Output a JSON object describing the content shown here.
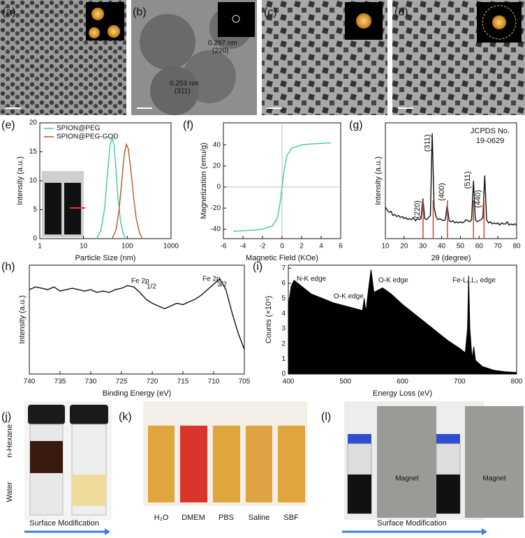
{
  "panel_labels": [
    "(a)",
    "(b)",
    "(c)",
    "(d)",
    "(e)",
    "(f)",
    "(g)",
    "(h)",
    "(i)",
    "(j)",
    "(k)",
    "(l)"
  ],
  "tem": {
    "annotations": [
      "0.297 nm",
      "(220)",
      "0.253 nm",
      "(311)"
    ]
  },
  "chart_data": [
    {
      "type": "line",
      "xlabel": "Particle Size (nm)",
      "ylabel": "Intensity (a.u.)",
      "xscale": "log",
      "xlim": [
        1,
        1000
      ],
      "xticks": [
        1,
        10,
        100,
        1000
      ],
      "ylim": [
        0,
        20
      ],
      "yticks": [
        0,
        5,
        10,
        15,
        20
      ],
      "legend": "upper left",
      "series": [
        {
          "name": "SPION@PEG",
          "color": "#3ec9a8",
          "x": [
            20,
            25,
            30,
            35,
            40,
            45,
            50,
            55,
            60,
            70,
            80,
            90
          ],
          "values": [
            0,
            1.5,
            5,
            11,
            16,
            17.5,
            16,
            12,
            8,
            3,
            1,
            0
          ]
        },
        {
          "name": "SPION@PEG-GOD",
          "color": "#c8501e",
          "x": [
            45,
            55,
            65,
            75,
            85,
            95,
            105,
            120,
            140,
            160,
            190,
            220
          ],
          "values": [
            0,
            1.5,
            5,
            10,
            14.5,
            16.3,
            15.5,
            12,
            7,
            3.5,
            1,
            0
          ]
        }
      ]
    },
    {
      "type": "line",
      "xlabel": "Magnetic Field (KOe)",
      "ylabel": "Magnetization (emu/g)",
      "zero_lines": true,
      "xlim": [
        -6,
        6
      ],
      "xticks": [
        -6,
        -4,
        -2,
        0,
        2,
        4,
        6
      ],
      "ylim": [
        -49,
        61
      ],
      "yticks": [
        -40,
        -20,
        0,
        20,
        40
      ],
      "series": [
        {
          "color": "#3ec9a8",
          "x": [
            -5,
            -4,
            -3,
            -2,
            -1,
            -0.5,
            -0.2,
            0,
            0.2,
            0.5,
            1,
            2,
            3,
            4,
            5
          ],
          "values": [
            -42,
            -41.5,
            -41,
            -40,
            -37,
            -30,
            -15,
            0,
            15,
            30,
            37,
            40,
            41,
            41.5,
            42
          ]
        }
      ]
    },
    {
      "type": "line",
      "xlabel": "2θ (degree)",
      "ylabel": "Intensity (a.u.)",
      "annotation": [
        "JCPDS No.",
        "19-0629"
      ],
      "xlim": [
        10,
        80
      ],
      "xticks": [
        10,
        20,
        30,
        40,
        50,
        60,
        70,
        80
      ],
      "ylim": [
        0,
        110
      ],
      "color": "#111",
      "x": [
        10,
        11,
        12,
        13,
        14,
        15,
        16,
        17,
        18,
        19,
        20,
        21,
        22,
        23,
        24,
        25,
        26,
        27,
        28,
        29,
        30,
        31,
        32,
        33,
        34,
        35,
        36,
        37,
        38,
        39,
        40,
        41,
        42,
        43,
        44,
        45,
        46,
        47,
        48,
        49,
        50,
        51,
        52,
        53,
        54,
        55,
        56,
        57,
        58,
        59,
        60,
        61,
        62,
        63,
        64,
        65,
        66,
        67,
        68,
        69,
        70,
        71,
        72,
        73,
        74,
        75,
        76,
        77,
        78,
        79,
        80
      ],
      "values": [
        30,
        27,
        25,
        26,
        22,
        23,
        21,
        22,
        20,
        21,
        19,
        20,
        18,
        19,
        18,
        20,
        17,
        19,
        18,
        19,
        38,
        19,
        18,
        20,
        22,
        100,
        30,
        21,
        18,
        19,
        18,
        17,
        18,
        32,
        17,
        16,
        17,
        15,
        16,
        15,
        16,
        15,
        16,
        18,
        17,
        16,
        18,
        55,
        18,
        16,
        17,
        18,
        20,
        60,
        18,
        15,
        16,
        14,
        15,
        14,
        15,
        13,
        15,
        14,
        14,
        16,
        13,
        14,
        13,
        14,
        13
      ],
      "peak_color": "#e0402a",
      "peaks": [
        {
          "x": 30.1,
          "label": "(220)"
        },
        {
          "x": 35.5,
          "label": "(311)"
        },
        {
          "x": 43.1,
          "label": "(400)"
        },
        {
          "x": 57.0,
          "label": "(511)"
        },
        {
          "x": 62.6,
          "label": "(440)"
        }
      ]
    },
    {
      "type": "line",
      "xlabel": "Binding Energy (eV)",
      "ylabel": "Intensity (a.u.)",
      "annotations": [
        "Fe 2p",
        "1/2",
        "Fe 2p",
        "3/2"
      ],
      "xlim": [
        740,
        705
      ],
      "xticks": [
        740,
        735,
        730,
        725,
        720,
        715,
        710,
        705
      ],
      "ylim": [
        0,
        80
      ],
      "color": "#111",
      "x": [
        740,
        739,
        738,
        737,
        736,
        735,
        734,
        733,
        732,
        731,
        730,
        729,
        728,
        727,
        726,
        725,
        724,
        723,
        722,
        721,
        720,
        719,
        718,
        717,
        716,
        715,
        714,
        713,
        712,
        711,
        710,
        709,
        708,
        707,
        706,
        705
      ],
      "values": [
        62,
        64,
        63,
        62,
        64,
        61,
        62,
        63,
        62,
        61,
        62,
        60,
        61,
        60,
        62,
        63,
        65,
        64,
        60,
        55,
        52,
        50,
        48,
        50,
        52,
        51,
        53,
        55,
        58,
        62,
        66,
        70,
        62,
        45,
        30,
        18
      ]
    },
    {
      "type": "area",
      "xlabel": "Energy Loss (eV)",
      "ylabel": "Counts (×10⁵)",
      "annotations": [
        "N-K edge",
        "O-K edge",
        "O-K edge",
        "Fe-L₂,L₃ edge"
      ],
      "xlim": [
        400,
        800
      ],
      "xticks": [
        400,
        500,
        600,
        700,
        800
      ],
      "ylim": [
        0,
        7.2
      ],
      "yticks": [
        0,
        1,
        2,
        3,
        4,
        5,
        6,
        7
      ],
      "color": "#000",
      "x": [
        400,
        405,
        410,
        420,
        430,
        440,
        460,
        480,
        500,
        520,
        530,
        533,
        536,
        540,
        545,
        550,
        565,
        580,
        600,
        620,
        640,
        660,
        680,
        700,
        710,
        714,
        716,
        718,
        722,
        725,
        728,
        740,
        760,
        780,
        800
      ],
      "values": [
        4.5,
        5.8,
        6.2,
        5.9,
        5.6,
        5.3,
        5.0,
        4.7,
        4.5,
        4.3,
        4.2,
        5.0,
        4.1,
        5.5,
        6.9,
        5.4,
        5.7,
        5.3,
        4.6,
        4.0,
        3.4,
        2.8,
        2.2,
        1.7,
        1.4,
        3.0,
        6.5,
        3.0,
        1.0,
        1.8,
        0.9,
        0.5,
        0.25,
        0.15,
        0.1
      ]
    }
  ],
  "photos": {
    "j": {
      "labels": [
        "Water",
        "n-Hexane"
      ],
      "caption": "Surface Modification"
    },
    "k": {
      "labels": [
        "H₂O",
        "DMEM",
        "PBS",
        "Saline",
        "SBF"
      ]
    },
    "l": {
      "labels": [
        "Magnet",
        "Magnet"
      ],
      "caption": "Surface Modification"
    }
  }
}
